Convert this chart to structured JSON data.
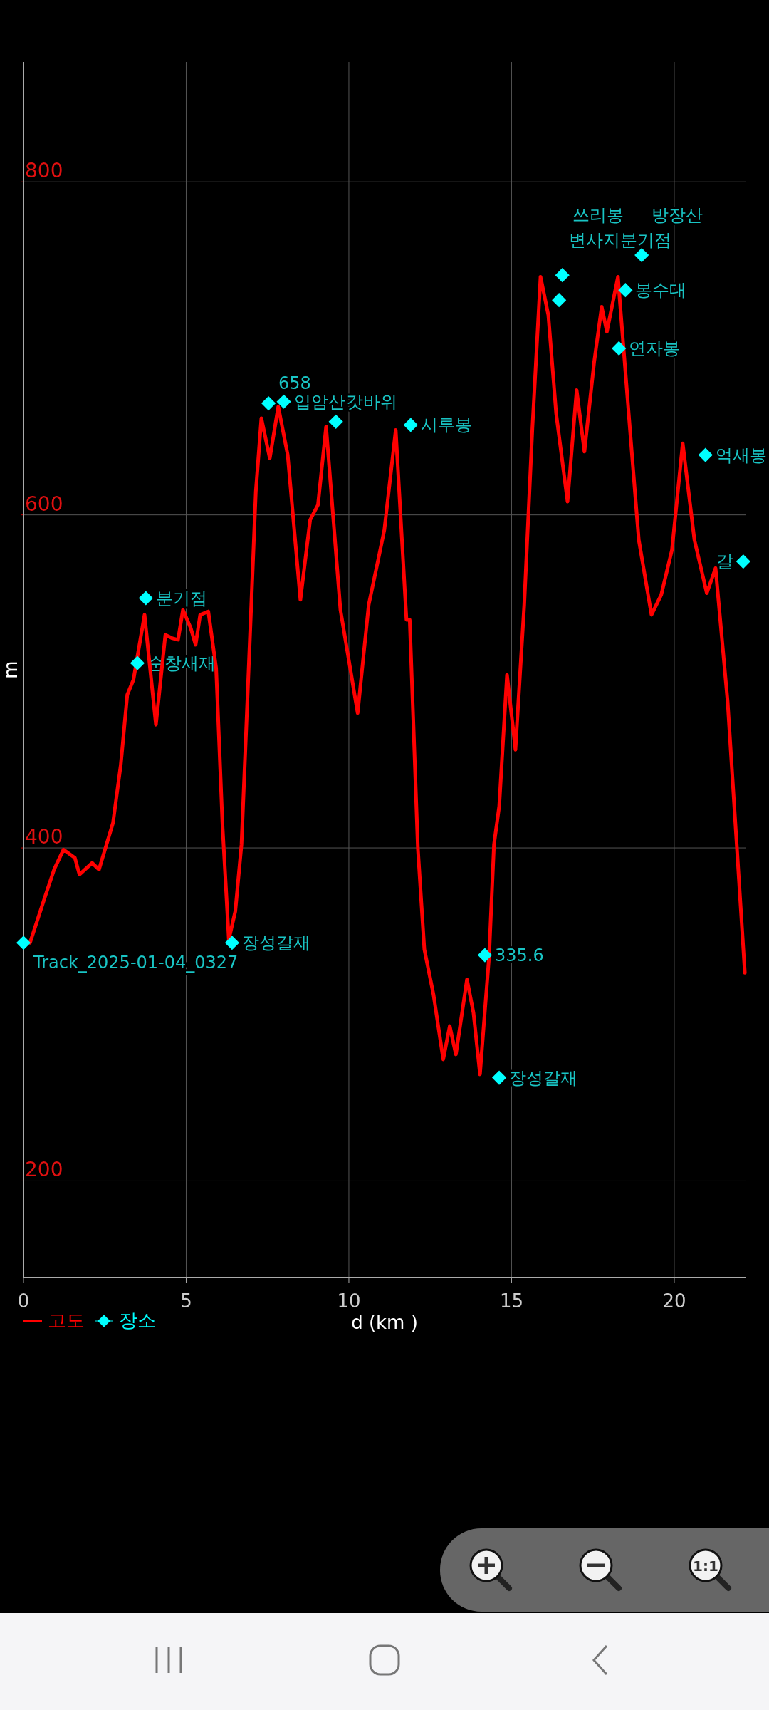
{
  "chart_data": {
    "type": "line",
    "xlabel": "d (km )",
    "ylabel": "m",
    "xlim": [
      0,
      22.19
    ],
    "xticks": [
      0,
      5,
      10,
      15,
      20
    ],
    "ylim": [
      142,
      872
    ],
    "yticks": [
      200,
      400,
      600,
      800
    ],
    "grid": true,
    "legend": "bottom left",
    "series": [
      {
        "name": "고도",
        "color": "#ff0000",
        "line_style": "solid",
        "x": [
          0.2,
          0.65,
          0.94,
          1.23,
          1.58,
          1.72,
          2.11,
          2.32,
          2.75,
          2.99,
          3.19,
          3.38,
          3.72,
          4.07,
          4.36,
          4.56,
          4.75,
          4.9,
          5.14,
          5.29,
          5.43,
          5.68,
          5.92,
          6.12,
          6.31,
          6.51,
          6.7,
          7.0,
          7.14,
          7.31,
          7.57,
          7.83,
          8.12,
          8.51,
          8.81,
          9.05,
          9.3,
          9.74,
          10.27,
          10.61,
          10.9,
          11.09,
          11.44,
          11.77,
          11.87,
          12.12,
          12.32,
          12.6,
          12.9,
          13.1,
          13.29,
          13.63,
          13.83,
          14.03,
          14.31,
          14.46,
          14.62,
          14.86,
          15.12,
          15.39,
          15.64,
          15.89,
          16.13,
          16.37,
          16.72,
          17.0,
          17.24,
          17.54,
          17.77,
          17.93,
          18.27,
          18.62,
          18.91,
          19.3,
          19.6,
          19.93,
          20.26,
          20.62,
          21.0,
          21.27,
          21.64,
          22.17
        ],
        "values": [
          343,
          370,
          387,
          399,
          394,
          384,
          391,
          387,
          415,
          450,
          492,
          501,
          540,
          474,
          528,
          526,
          525,
          543,
          532,
          522,
          540,
          542,
          508,
          412,
          345,
          362,
          402,
          546,
          614,
          658,
          634,
          665,
          636,
          549,
          597,
          606,
          653,
          543,
          481,
          546,
          573,
          591,
          651,
          537,
          537,
          400,
          339,
          312,
          273,
          293,
          276,
          321,
          301,
          264,
          335,
          402,
          425,
          504,
          459,
          546,
          652,
          743,
          720,
          661,
          608,
          675,
          638,
          692,
          725,
          710,
          743,
          656,
          585,
          540,
          552,
          579,
          643,
          585,
          553,
          568,
          488,
          325
        ]
      },
      {
        "name": "장소",
        "color": "#00ffff",
        "type": "scatter",
        "marker": "diamond",
        "x": [
          0,
          3.5,
          3.76,
          6.41,
          7.53,
          8.0,
          9.6,
          11.9,
          14.18,
          14.62,
          16.46,
          16.56,
          18.3,
          18.5,
          19.0,
          20.96,
          22.12
        ],
        "values": [
          343,
          511,
          550,
          343,
          667,
          668,
          656,
          654,
          335.6,
          262,
          729,
          744,
          700,
          735,
          756,
          636,
          572
        ]
      }
    ],
    "annotations": [
      {
        "text": "Track_2025-01-04_0327",
        "x": 0,
        "y": 343
      },
      {
        "text": "순창새재",
        "x": 3.5,
        "y": 511
      },
      {
        "text": "분기점",
        "x": 3.76,
        "y": 550
      },
      {
        "text": "장성갈재",
        "x": 6.41,
        "y": 343
      },
      {
        "text": "658",
        "x": 7.53,
        "y": 667
      },
      {
        "text": "입암산",
        "x": 8.0,
        "y": 668
      },
      {
        "text": "갓바위",
        "x": 9.6,
        "y": 656
      },
      {
        "text": "시루봉",
        "x": 11.9,
        "y": 654
      },
      {
        "text": "335.6",
        "x": 14.18,
        "y": 335.6
      },
      {
        "text": "장성갈재",
        "x": 14.62,
        "y": 262
      },
      {
        "text": "변사지분기점",
        "x": 16.46,
        "y": 729
      },
      {
        "text": "쓰리봉",
        "x": 16.56,
        "y": 744
      },
      {
        "text": "연자봉",
        "x": 18.3,
        "y": 700
      },
      {
        "text": "봉수대",
        "x": 18.5,
        "y": 735
      },
      {
        "text": "방장산",
        "x": 19.0,
        "y": 756
      },
      {
        "text": "억새봉",
        "x": 20.96,
        "y": 636
      },
      {
        "text": "갈",
        "x": 22.12,
        "y": 572
      },
      "1:1"
    ]
  }
}
